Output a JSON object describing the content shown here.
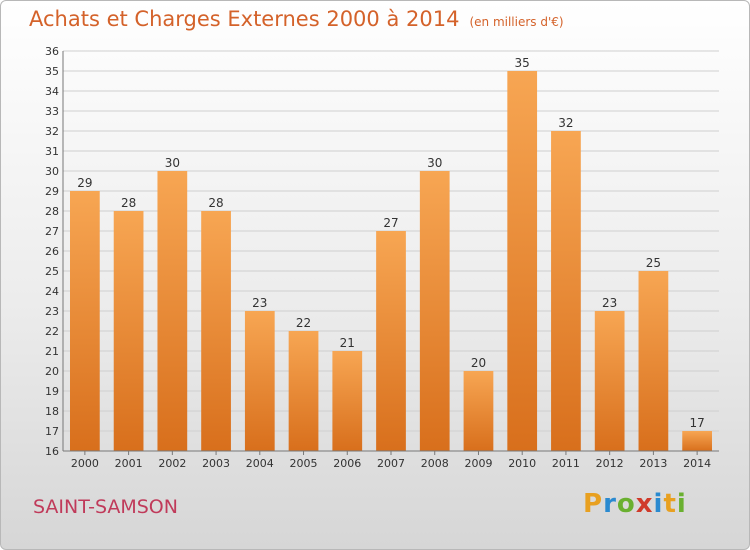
{
  "chart_data": {
    "type": "bar",
    "title": "Achats et Charges Externes 2000 à 2014",
    "unit": "(en milliers d'€)",
    "categories": [
      "2000",
      "2001",
      "2002",
      "2003",
      "2004",
      "2005",
      "2006",
      "2007",
      "2008",
      "2009",
      "2010",
      "2011",
      "2012",
      "2013",
      "2014"
    ],
    "values": [
      29,
      28,
      30,
      28,
      23,
      22,
      21,
      27,
      30,
      20,
      35,
      32,
      23,
      25,
      17
    ],
    "ylim": [
      16,
      36
    ],
    "ytick_step": 1,
    "grid": true,
    "bar_color": "#f39a45"
  },
  "footer": {
    "place": "SAINT-SAMSON",
    "brand_letters": [
      "P",
      "r",
      "o",
      "x",
      "i",
      "t",
      "i"
    ],
    "brand_colors": [
      "#e8a020",
      "#2a8ad0",
      "#6ab030",
      "#d03a2a",
      "#2a8ad0",
      "#e8a020",
      "#6ab030"
    ]
  }
}
